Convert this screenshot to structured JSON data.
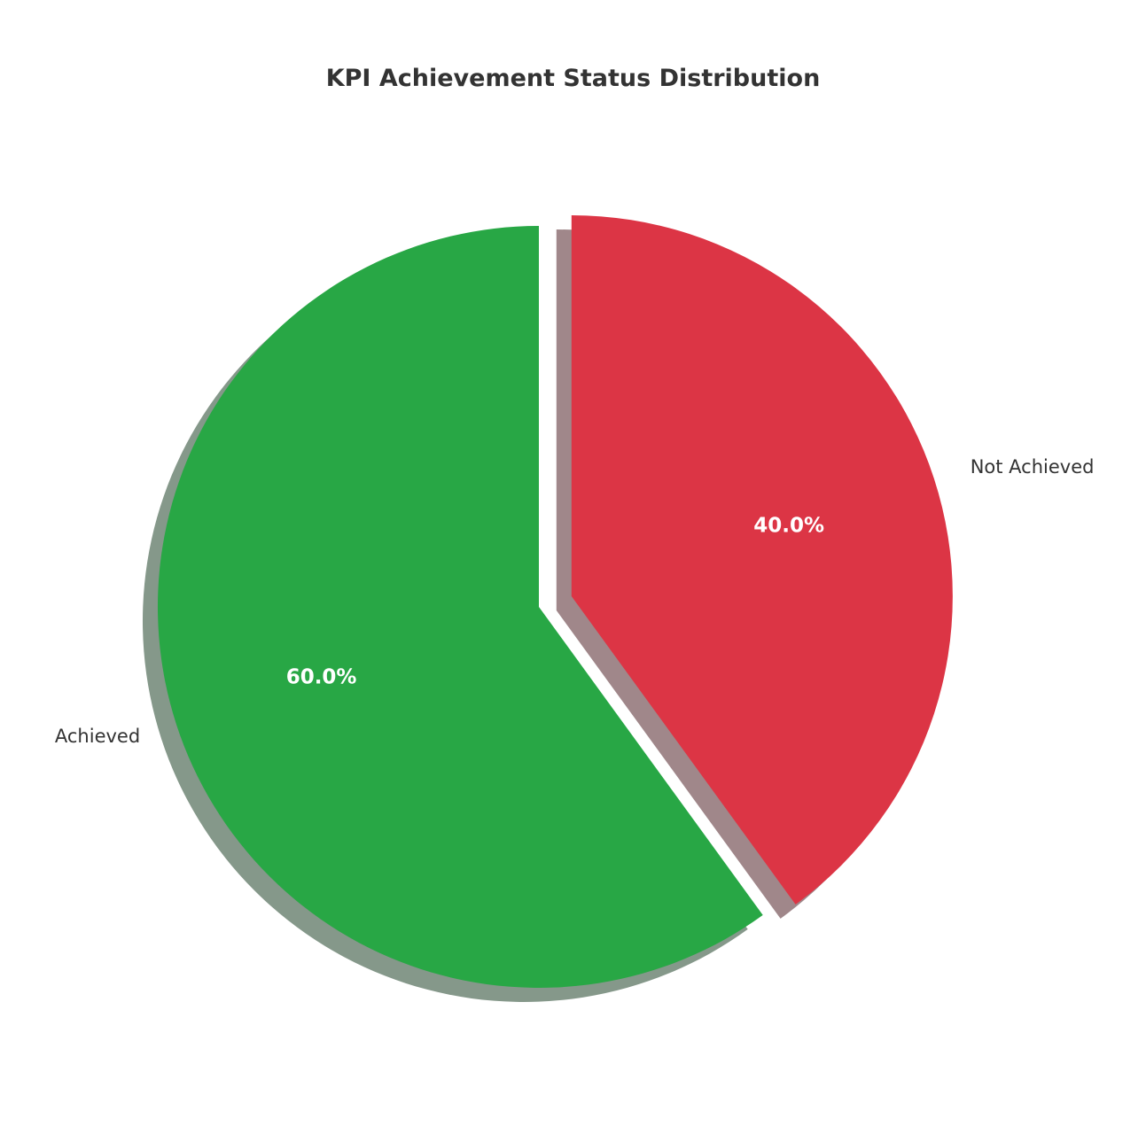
{
  "chart_data": {
    "type": "pie",
    "title": "KPI Achievement Status Distribution",
    "legend": "none",
    "start_angle": 90,
    "counterclockwise": true,
    "shadow": true,
    "slices": [
      {
        "label": "Achieved",
        "value": 60.0,
        "pct_label": "60.0%",
        "color": "#28a745",
        "explode": 0.0
      },
      {
        "label": "Not Achieved",
        "value": 40.0,
        "pct_label": "40.0%",
        "color": "#dc3545",
        "explode": 0.09
      }
    ]
  }
}
